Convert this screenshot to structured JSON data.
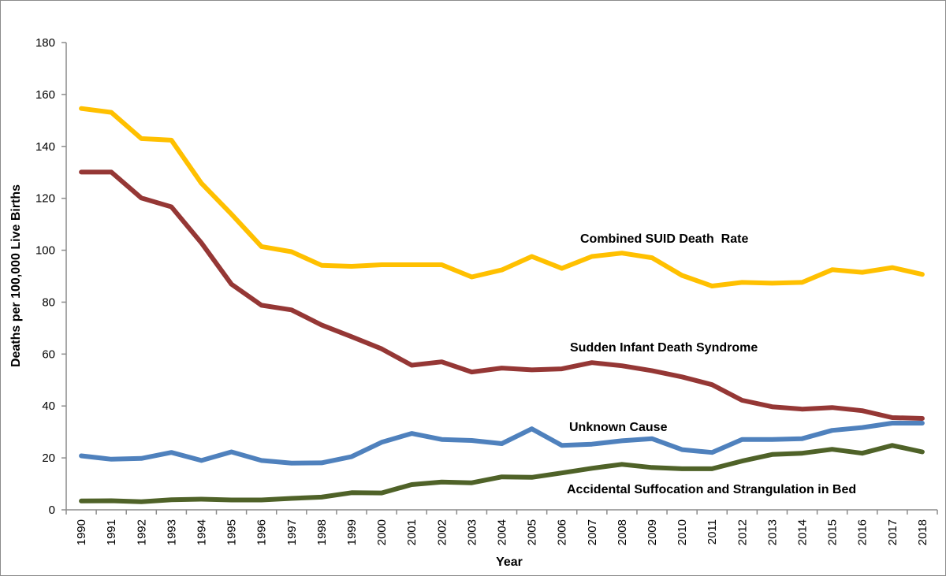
{
  "chart_data": {
    "type": "line",
    "title": "",
    "xlabel": "Year",
    "ylabel": "Deaths per 100,000 Live Births",
    "ylim": [
      0,
      180
    ],
    "yticks": [
      0,
      20,
      40,
      60,
      80,
      100,
      120,
      140,
      160,
      180
    ],
    "grid": false,
    "legend": "inline labels",
    "categories": [
      "1990",
      "1991",
      "1992",
      "1993",
      "1994",
      "1995",
      "1996",
      "1997",
      "1998",
      "1999",
      "2000",
      "2001",
      "2002",
      "2003",
      "2004",
      "2005",
      "2006",
      "2007",
      "2008",
      "2009",
      "2010",
      "2011",
      "2012",
      "2013",
      "2014",
      "2015",
      "2016",
      "2017",
      "2018"
    ],
    "series": [
      {
        "name": "Combined SUID Death  Rate",
        "color": "#FFC000",
        "values": [
          154.6,
          153.1,
          143.0,
          142.4,
          125.8,
          113.9,
          101.4,
          99.4,
          94.2,
          93.8,
          94.4,
          94.4,
          94.4,
          89.7,
          92.4,
          97.6,
          93.0,
          97.6,
          98.9,
          97.1,
          90.3,
          86.2,
          87.6,
          87.3,
          87.6,
          92.5,
          91.5,
          93.3,
          90.7
        ]
      },
      {
        "name": "Sudden Infant Death Syndrome",
        "color": "#953735",
        "values": [
          130.1,
          130.1,
          120.1,
          116.7,
          102.8,
          86.9,
          78.8,
          77.0,
          71.2,
          66.7,
          62.0,
          55.7,
          57.0,
          53.1,
          54.6,
          53.9,
          54.3,
          56.7,
          55.5,
          53.6,
          51.2,
          48.2,
          42.2,
          39.7,
          38.8,
          39.4,
          38.2,
          35.5,
          35.2
        ]
      },
      {
        "name": "Unknown Cause",
        "color": "#4F81BD",
        "values": [
          20.8,
          19.5,
          19.8,
          22.1,
          19.0,
          22.3,
          19.0,
          18.0,
          18.1,
          20.5,
          26.0,
          29.4,
          27.1,
          26.7,
          25.5,
          31.2,
          24.8,
          25.3,
          26.6,
          27.4,
          23.2,
          22.1,
          27.1,
          27.1,
          27.4,
          30.6,
          31.7,
          33.4,
          33.4
        ]
      },
      {
        "name": "Accidental Suffocation and Strangulation in Bed",
        "color": "#4F6228",
        "values": [
          3.4,
          3.5,
          3.1,
          3.9,
          4.1,
          3.8,
          3.8,
          4.4,
          4.9,
          6.6,
          6.5,
          9.7,
          10.7,
          10.4,
          12.7,
          12.5,
          14.2,
          16.0,
          17.5,
          16.3,
          15.8,
          15.8,
          18.8,
          21.3,
          21.8,
          23.3,
          21.8,
          24.8,
          22.3
        ]
      }
    ]
  }
}
